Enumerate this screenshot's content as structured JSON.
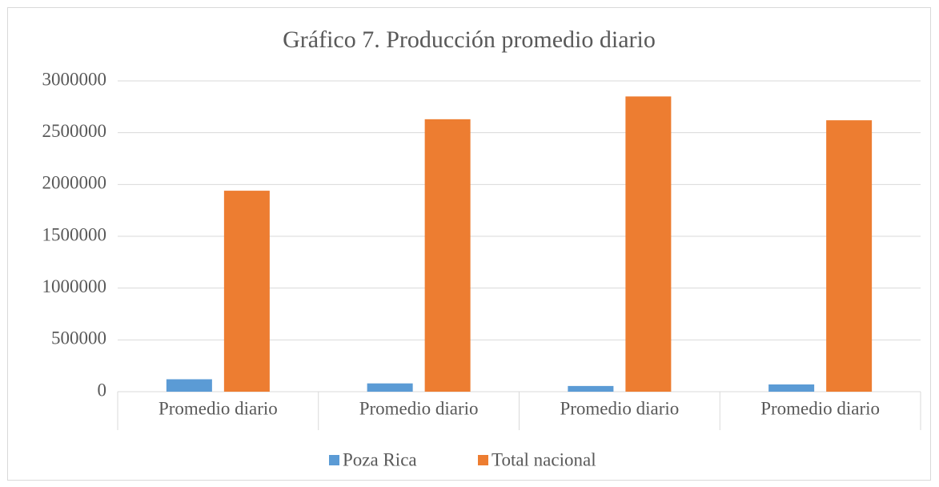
{
  "chart_data": {
    "type": "bar",
    "title": "Gráfico 7. Producción promedio diario",
    "categories": [
      "Promedio diario",
      "Promedio diario",
      "Promedio diario",
      "Promedio diario"
    ],
    "series": [
      {
        "name": "Poza Rica",
        "color": "#5b9bd5",
        "values": [
          120000,
          80000,
          55000,
          70000
        ]
      },
      {
        "name": "Total nacional",
        "color": "#ed7d31",
        "values": [
          1940000,
          2630000,
          2850000,
          2620000
        ]
      }
    ],
    "ylim": [
      0,
      3000000
    ],
    "yticks": [
      0,
      500000,
      1000000,
      1500000,
      2000000,
      2500000,
      3000000
    ],
    "grid": true,
    "legend": "bottom"
  }
}
